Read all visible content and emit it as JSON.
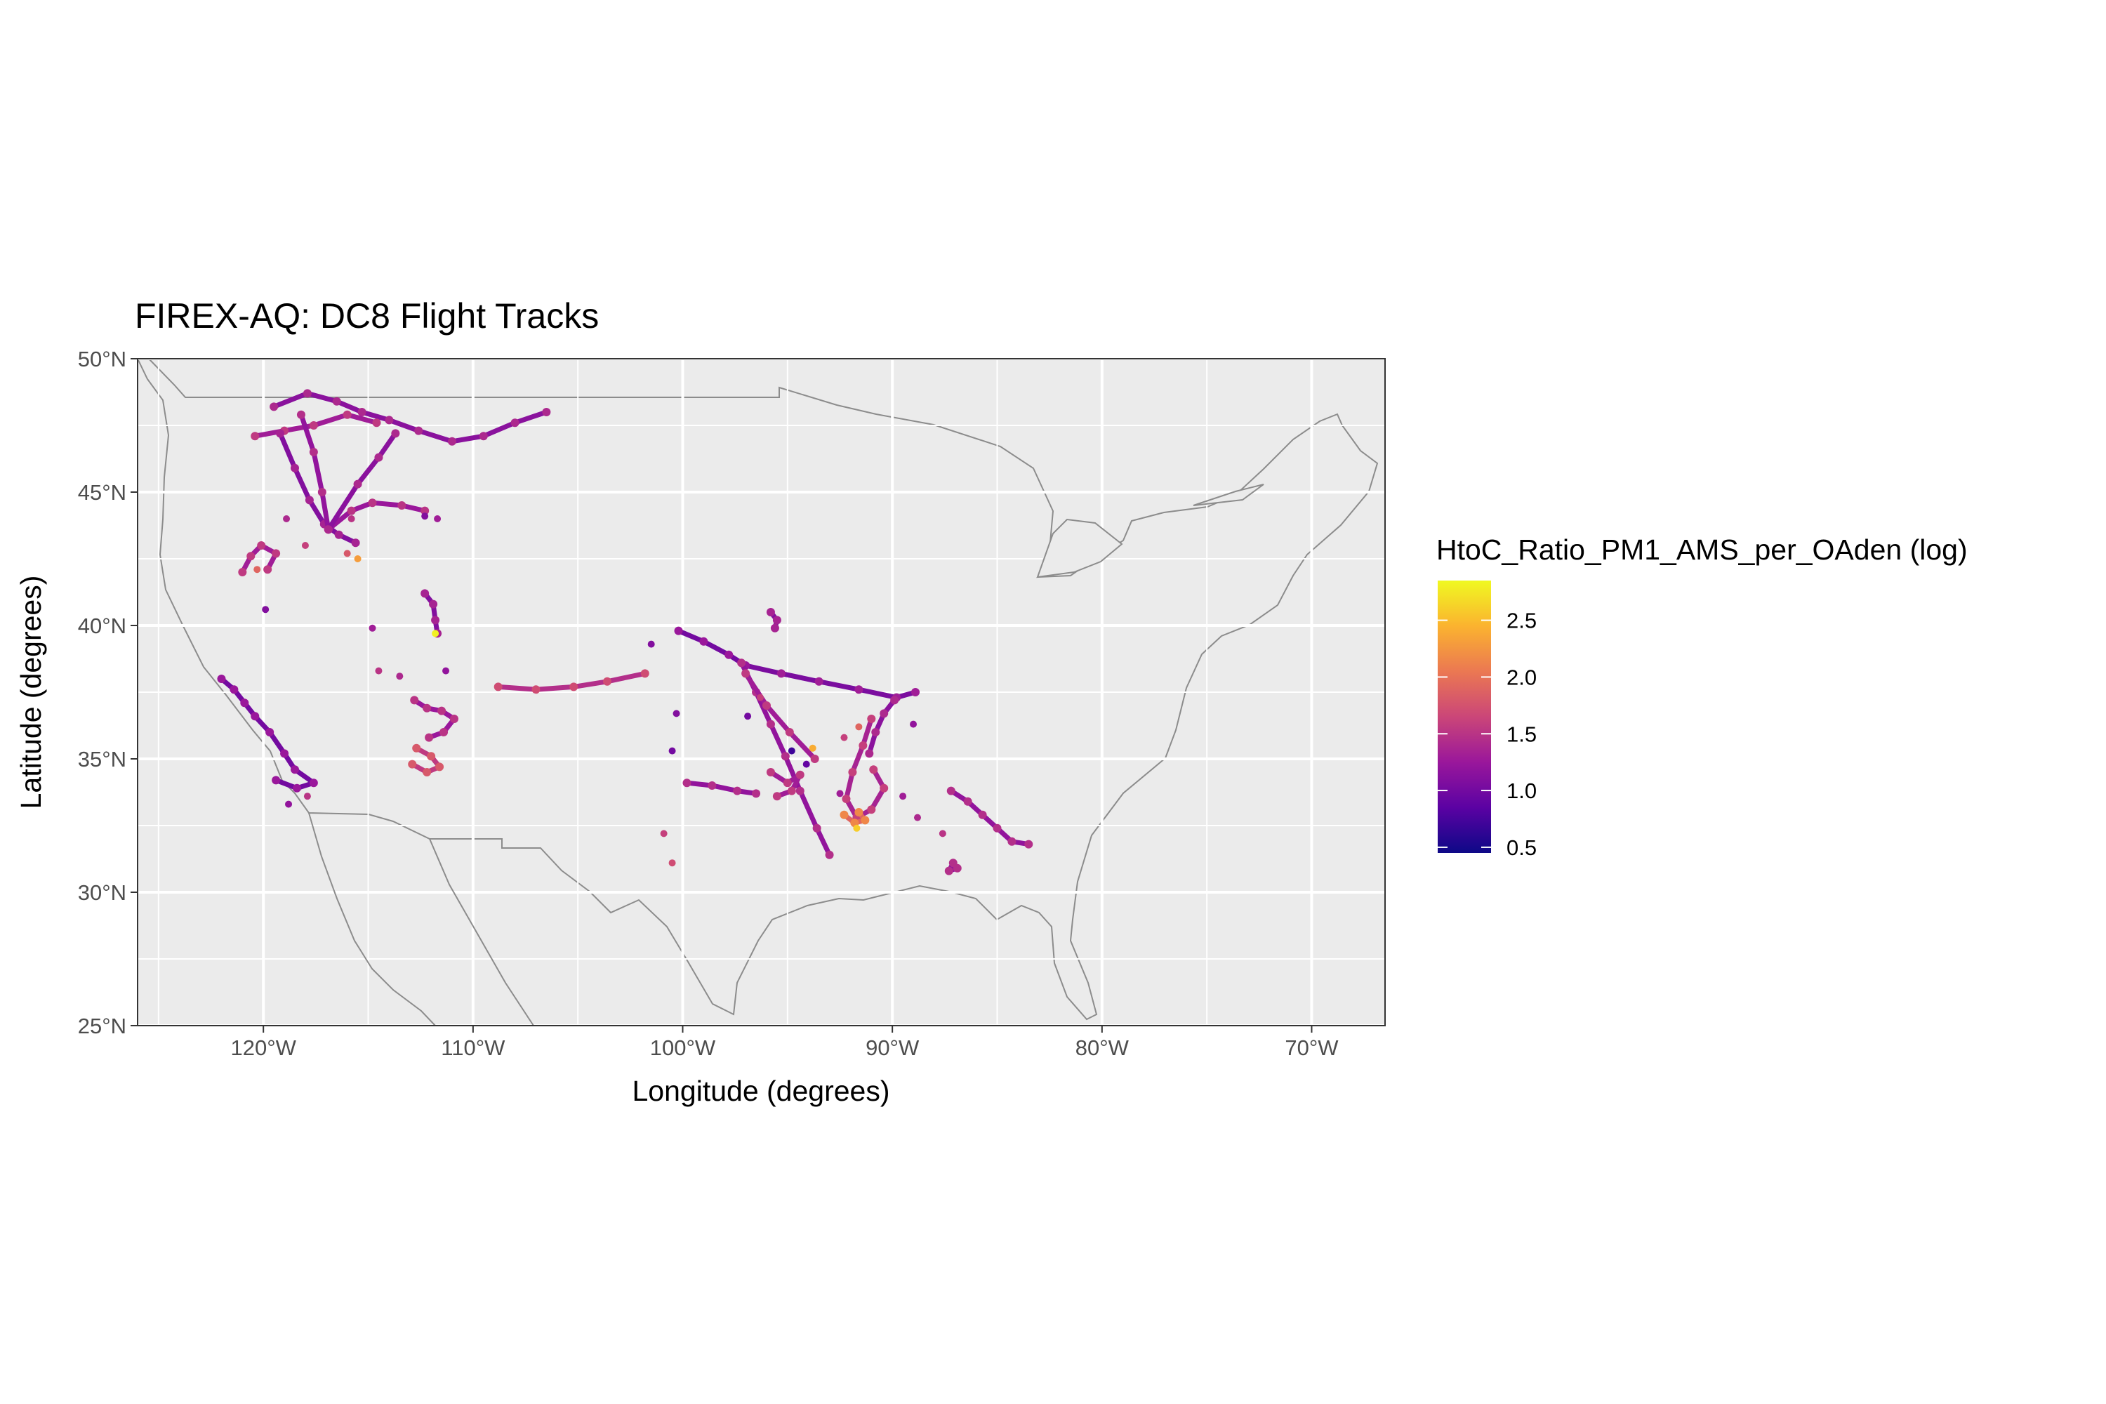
{
  "title": "FIREX-AQ: DC8 Flight Tracks",
  "x_axis": {
    "label": "Longitude (degrees)",
    "ticks": [
      {
        "value": -120,
        "label": "120°W"
      },
      {
        "value": -110,
        "label": "110°W"
      },
      {
        "value": -100,
        "label": "100°W"
      },
      {
        "value": -90,
        "label": "90°W"
      },
      {
        "value": -80,
        "label": "80°W"
      },
      {
        "value": -70,
        "label": "70°W"
      }
    ]
  },
  "y_axis": {
    "label": "Latitude (degrees)",
    "ticks": [
      {
        "value": 25,
        "label": "25°N"
      },
      {
        "value": 30,
        "label": "30°N"
      },
      {
        "value": 35,
        "label": "35°N"
      },
      {
        "value": 40,
        "label": "40°N"
      },
      {
        "value": 45,
        "label": "45°N"
      },
      {
        "value": 50,
        "label": "50°N"
      }
    ]
  },
  "legend": {
    "title": "HtoC_Ratio_PM1_AMS_per_OAden  (log)",
    "ticks": [
      {
        "value": 0.5,
        "label": "0.5"
      },
      {
        "value": 1.0,
        "label": "1.0"
      },
      {
        "value": 1.5,
        "label": "1.5"
      },
      {
        "value": 2.0,
        "label": "2.0"
      },
      {
        "value": 2.5,
        "label": "2.5"
      }
    ],
    "range": [
      0.45,
      2.85
    ],
    "colormap": "plasma",
    "colors": [
      "#0d0887",
      "#5b02a3",
      "#9a179b",
      "#cb4678",
      "#eb7852",
      "#fbb32f",
      "#f0f921"
    ],
    "placement": "right"
  },
  "chart_data": {
    "type": "scatter",
    "projection": "lon-lat",
    "xlim": [
      -126,
      -66.5
    ],
    "ylim": [
      25,
      50
    ],
    "grid": true,
    "background": "#ebebeb",
    "color_variable": "HtoC_Ratio_PM1_AMS_per_OAden (log)",
    "flight_tracks": [
      {
        "points": [
          [
            -119.5,
            48.2
          ],
          [
            -117.9,
            48.7
          ],
          [
            -116.5,
            48.4
          ],
          [
            -115.3,
            48.0
          ],
          [
            -114.0,
            47.7
          ],
          [
            -112.6,
            47.3
          ],
          [
            -111.0,
            46.9
          ],
          [
            -109.5,
            47.1
          ],
          [
            -108.0,
            47.6
          ],
          [
            -106.5,
            48.0
          ]
        ],
        "value": 1.15
      },
      {
        "points": [
          [
            -120.4,
            47.1
          ],
          [
            -119.0,
            47.3
          ],
          [
            -117.6,
            47.5
          ],
          [
            -116.0,
            47.9
          ],
          [
            -114.6,
            47.6
          ]
        ],
        "value": 1.3
      },
      {
        "points": [
          [
            -119.2,
            47.2
          ],
          [
            -118.5,
            45.9
          ],
          [
            -117.8,
            44.7
          ],
          [
            -117.1,
            43.8
          ],
          [
            -116.4,
            43.4
          ],
          [
            -115.6,
            43.1
          ]
        ],
        "value": 1.1
      },
      {
        "points": [
          [
            -118.2,
            47.9
          ],
          [
            -117.6,
            46.5
          ],
          [
            -117.2,
            45.0
          ],
          [
            -116.9,
            43.6
          ]
        ],
        "value": 1.2
      },
      {
        "points": [
          [
            -116.9,
            43.6
          ],
          [
            -115.8,
            44.3
          ],
          [
            -114.8,
            44.6
          ],
          [
            -113.4,
            44.5
          ],
          [
            -112.3,
            44.3
          ]
        ],
        "value": 1.25
      },
      {
        "points": [
          [
            -116.9,
            43.6
          ],
          [
            -115.5,
            45.3
          ],
          [
            -114.5,
            46.3
          ],
          [
            -113.7,
            47.2
          ]
        ],
        "value": 1.15
      },
      {
        "points": [
          [
            -121.0,
            42.0
          ],
          [
            -120.6,
            42.6
          ],
          [
            -120.1,
            43.0
          ],
          [
            -119.4,
            42.7
          ],
          [
            -119.8,
            42.1
          ]
        ],
        "value": 1.3
      },
      {
        "points": [
          [
            -112.3,
            41.2
          ],
          [
            -111.9,
            40.8
          ],
          [
            -111.8,
            40.2
          ],
          [
            -111.7,
            39.7
          ]
        ],
        "value": 1.1
      },
      {
        "points": [
          [
            -122.0,
            38.0
          ],
          [
            -121.4,
            37.6
          ],
          [
            -120.9,
            37.1
          ],
          [
            -120.4,
            36.6
          ],
          [
            -119.7,
            36.0
          ],
          [
            -119.0,
            35.2
          ],
          [
            -118.5,
            34.6
          ],
          [
            -117.6,
            34.1
          ],
          [
            -118.4,
            33.9
          ],
          [
            -119.4,
            34.2
          ]
        ],
        "value": 1.0
      },
      {
        "points": [
          [
            -112.8,
            37.2
          ],
          [
            -112.2,
            36.9
          ],
          [
            -111.5,
            36.8
          ],
          [
            -110.9,
            36.5
          ],
          [
            -111.4,
            36.0
          ],
          [
            -112.1,
            35.8
          ]
        ],
        "value": 1.25
      },
      {
        "points": [
          [
            -112.7,
            35.4
          ],
          [
            -112.0,
            35.1
          ],
          [
            -111.6,
            34.7
          ],
          [
            -112.2,
            34.5
          ],
          [
            -112.9,
            34.8
          ]
        ],
        "value": 1.55
      },
      {
        "points": [
          [
            -97.0,
            38.5
          ],
          [
            -95.3,
            38.2
          ],
          [
            -93.5,
            37.9
          ],
          [
            -91.6,
            37.6
          ],
          [
            -89.8,
            37.3
          ],
          [
            -88.9,
            37.5
          ]
        ],
        "value": 1.05
      },
      {
        "points": [
          [
            -100.2,
            39.8
          ],
          [
            -99.0,
            39.4
          ],
          [
            -97.8,
            38.9
          ],
          [
            -97.0,
            38.5
          ]
        ],
        "value": 1.0
      },
      {
        "points": [
          [
            -97.2,
            38.6
          ],
          [
            -96.5,
            37.5
          ],
          [
            -95.8,
            36.3
          ],
          [
            -95.1,
            35.1
          ],
          [
            -94.4,
            33.8
          ],
          [
            -93.6,
            32.4
          ],
          [
            -93.0,
            31.4
          ]
        ],
        "value": 1.2
      },
      {
        "points": [
          [
            -97.0,
            38.2
          ],
          [
            -96.0,
            37.0
          ],
          [
            -94.9,
            36.0
          ],
          [
            -93.7,
            35.0
          ]
        ],
        "value": 1.3
      },
      {
        "points": [
          [
            -95.8,
            34.5
          ],
          [
            -95.0,
            34.1
          ],
          [
            -94.4,
            34.4
          ],
          [
            -94.8,
            33.8
          ],
          [
            -95.5,
            33.6
          ]
        ],
        "value": 1.3
      },
      {
        "points": [
          [
            -91.0,
            36.5
          ],
          [
            -91.4,
            35.5
          ],
          [
            -91.9,
            34.5
          ],
          [
            -92.2,
            33.5
          ],
          [
            -91.7,
            32.8
          ],
          [
            -91.0,
            33.1
          ],
          [
            -90.4,
            33.9
          ],
          [
            -90.9,
            34.6
          ]
        ],
        "value": 1.35
      },
      {
        "points": [
          [
            -92.3,
            32.9
          ],
          [
            -91.8,
            32.6
          ],
          [
            -91.3,
            32.7
          ],
          [
            -91.6,
            33.0
          ]
        ],
        "value": 1.9
      },
      {
        "points": [
          [
            -89.9,
            37.2
          ],
          [
            -90.4,
            36.7
          ],
          [
            -90.8,
            36.0
          ],
          [
            -91.1,
            35.2
          ]
        ],
        "value": 1.15
      },
      {
        "points": [
          [
            -87.2,
            33.8
          ],
          [
            -86.4,
            33.4
          ],
          [
            -85.7,
            32.9
          ],
          [
            -85.0,
            32.4
          ],
          [
            -84.3,
            31.9
          ],
          [
            -83.5,
            31.8
          ]
        ],
        "value": 1.2
      },
      {
        "points": [
          [
            -99.8,
            34.1
          ],
          [
            -98.6,
            34.0
          ],
          [
            -97.4,
            33.8
          ],
          [
            -96.5,
            33.7
          ]
        ],
        "value": 1.2
      },
      {
        "points": [
          [
            -108.8,
            37.7
          ],
          [
            -107.0,
            37.6
          ],
          [
            -105.2,
            37.7
          ],
          [
            -103.6,
            37.9
          ],
          [
            -101.8,
            38.2
          ]
        ],
        "value": 1.45
      },
      {
        "points": [
          [
            -95.8,
            40.5
          ],
          [
            -95.5,
            40.2
          ],
          [
            -95.6,
            39.9
          ]
        ],
        "value": 1.1
      },
      {
        "points": [
          [
            -87.1,
            31.1
          ],
          [
            -87.3,
            30.8
          ],
          [
            -86.9,
            30.9
          ]
        ],
        "value": 1.2
      }
    ],
    "scatter_points": [
      [
        -118.9,
        44.0,
        1.4
      ],
      [
        -118.0,
        43.0,
        1.6
      ],
      [
        -116.0,
        42.7,
        1.8
      ],
      [
        -115.5,
        42.5,
        2.3
      ],
      [
        -114.5,
        38.3,
        1.5
      ],
      [
        -113.5,
        38.1,
        1.4
      ],
      [
        -114.8,
        39.9,
        1.3
      ],
      [
        -111.8,
        39.7,
        2.8
      ],
      [
        -111.3,
        38.3,
        1.2
      ],
      [
        -117.9,
        33.6,
        1.5
      ],
      [
        -118.8,
        33.3,
        1.2
      ],
      [
        -112.3,
        44.1,
        1.1
      ],
      [
        -111.7,
        44.0,
        1.3
      ],
      [
        -115.8,
        44.0,
        1.5
      ],
      [
        -120.3,
        42.1,
        1.9
      ],
      [
        -119.9,
        40.6,
        1.1
      ],
      [
        -101.5,
        39.3,
        1.1
      ],
      [
        -100.3,
        36.7,
        1.1
      ],
      [
        -100.5,
        35.3,
        1.0
      ],
      [
        -100.9,
        32.2,
        1.6
      ],
      [
        -100.5,
        31.1,
        1.7
      ],
      [
        -93.8,
        35.4,
        2.4
      ],
      [
        -92.3,
        35.8,
        1.6
      ],
      [
        -91.6,
        36.2,
        1.9
      ],
      [
        -92.5,
        33.7,
        1.3
      ],
      [
        -91.7,
        32.4,
        2.6
      ],
      [
        -89.5,
        33.6,
        1.3
      ],
      [
        -88.8,
        32.8,
        1.4
      ],
      [
        -87.6,
        32.2,
        1.5
      ],
      [
        -89.0,
        36.3,
        1.2
      ],
      [
        -94.8,
        35.3,
        0.7
      ],
      [
        -94.1,
        34.8,
        0.9
      ],
      [
        -96.9,
        36.6,
        1.0
      ],
      [
        -96.3,
        37.3,
        1.6
      ]
    ]
  }
}
